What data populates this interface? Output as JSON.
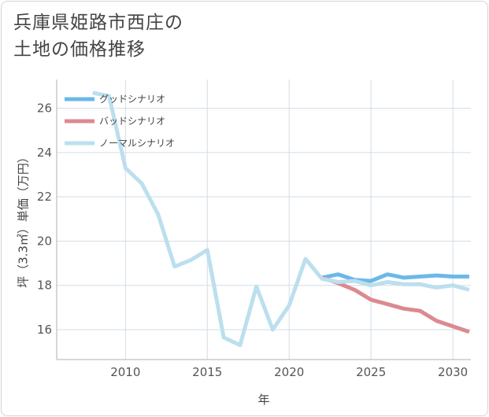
{
  "title": {
    "line1": "兵庫県姫路市西庄の",
    "line2": "土地の価格推移"
  },
  "chart_data": {
    "type": "line",
    "title": "兵庫県姫路市西庄の土地の価格推移",
    "xlabel": "年",
    "ylabel": "坪（3.3㎡）単価（万円）",
    "xlim": [
      2005.8,
      2031.1
    ],
    "ylim": [
      14.65,
      27.3
    ],
    "xticks": [
      2010,
      2015,
      2020,
      2025,
      2030
    ],
    "yticks": [
      16,
      18,
      20,
      22,
      24,
      26
    ],
    "grid": true,
    "legend_position": "top-left",
    "series": [
      {
        "name": "グッドシナリオ",
        "color": "#6cb8e8",
        "x": [
          2022,
          2023,
          2024,
          2025,
          2026,
          2027,
          2028,
          2029,
          2030,
          2031
        ],
        "values": [
          18.35,
          18.5,
          18.25,
          18.2,
          18.5,
          18.35,
          18.4,
          18.45,
          18.4,
          18.4
        ]
      },
      {
        "name": "バッドシナリオ",
        "color": "#db8a90",
        "x": [
          2022,
          2023,
          2024,
          2025,
          2026,
          2027,
          2028,
          2029,
          2030,
          2031
        ],
        "values": [
          18.35,
          18.1,
          17.8,
          17.35,
          17.15,
          16.95,
          16.85,
          16.4,
          16.15,
          15.9
        ]
      },
      {
        "name": "ノーマルシナリオ",
        "color": "#bcdfee",
        "x": [
          2008,
          2009,
          2010,
          2011,
          2012,
          2013,
          2014,
          2015,
          2016,
          2017,
          2018,
          2019,
          2020,
          2021,
          2022,
          2023,
          2024,
          2025,
          2026,
          2027,
          2028,
          2029,
          2030,
          2031
        ],
        "values": [
          26.7,
          26.55,
          23.3,
          22.6,
          21.2,
          18.85,
          19.15,
          19.6,
          15.65,
          15.3,
          17.95,
          16.0,
          17.1,
          19.2,
          18.3,
          18.15,
          18.2,
          18.0,
          18.15,
          18.05,
          18.05,
          17.9,
          18.0,
          17.8
        ]
      }
    ]
  }
}
